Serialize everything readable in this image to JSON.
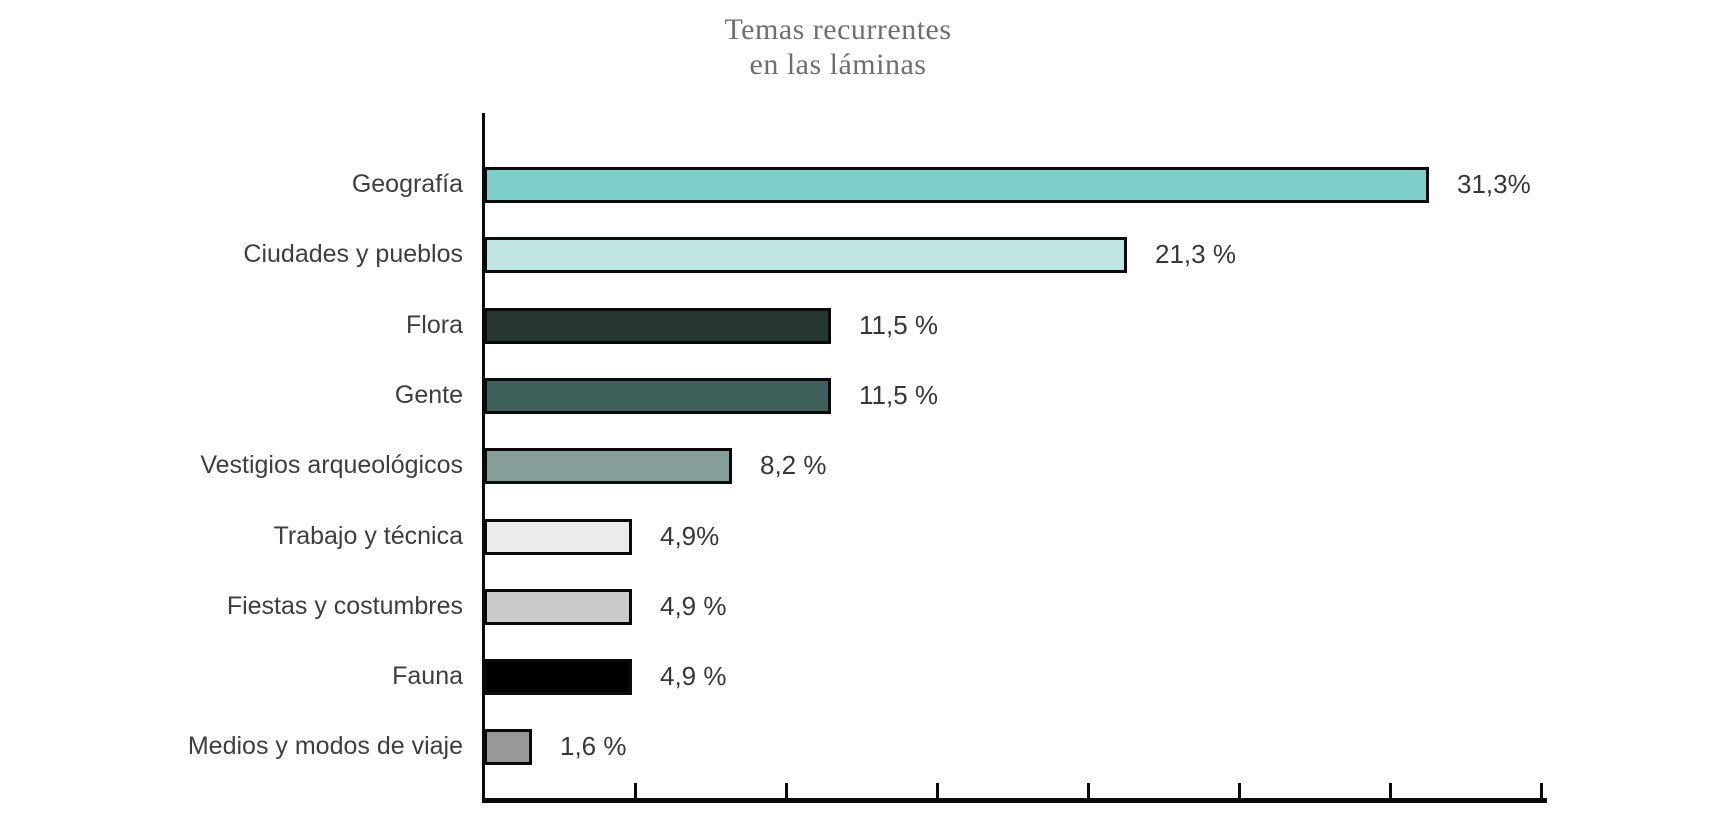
{
  "title": {
    "line1": "Temas recurrentes",
    "line2": "en las láminas",
    "color": "#6e6e6e"
  },
  "chart_data": {
    "type": "bar",
    "orientation": "horizontal",
    "title": "Temas recurrentes en las láminas",
    "xlabel": "",
    "ylabel": "",
    "grid": false,
    "legend": false,
    "xlim": [
      0,
      35.2
    ],
    "x_tick_values": [
      5,
      10,
      15,
      20,
      25,
      30,
      35
    ],
    "axis_color": "#0a0a0a",
    "bar_outline_color": "#0a0a0a",
    "categories": [
      "Geografía",
      "Ciudades y pueblos",
      "Flora",
      "Gente",
      "Vestigios arqueológicos",
      "Trabajo y técnica",
      "Fiestas y costumbres",
      "Fauna",
      "Medios y modos de viaje"
    ],
    "values": [
      31.3,
      21.3,
      11.5,
      11.5,
      8.2,
      4.9,
      4.9,
      4.9,
      1.6
    ],
    "value_labels": [
      "31,3%",
      "21,3 %",
      "11,5 %",
      "11,5 %",
      "8,2 %",
      "4,9%",
      "4,9 %",
      "4,9 %",
      "1,6 %"
    ],
    "bar_colors": [
      "#7ECFCA",
      "#BFE4E1",
      "#263731",
      "#40605B",
      "#859E9A",
      "#EBEBEB",
      "#CBCBCB",
      "#000000",
      "#989898"
    ]
  }
}
